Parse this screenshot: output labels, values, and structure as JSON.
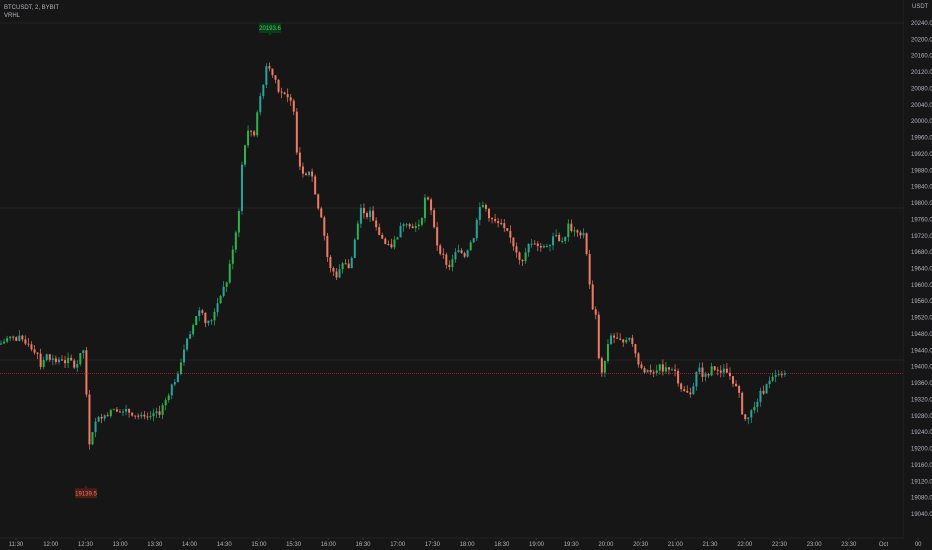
{
  "legend": {
    "symbol": "BTCUSDT, 2, BYBIT",
    "indicator": "VRHL"
  },
  "colors": {
    "bull": "#26a69a",
    "bullBright": "#2ab34e",
    "bear": "#ef7b63",
    "grid": "#222222",
    "axisText": "#b2b5be",
    "priceTag": "#f23645"
  },
  "chart_data": {
    "type": "candlestick",
    "unit": "USDT",
    "ylim": [
      19040,
      20240
    ],
    "y_ticks": [
      "20240.0",
      "20200.0",
      "20160.0",
      "20120.0",
      "20080.0",
      "20040.0",
      "20000.0",
      "19960.0",
      "19920.0",
      "19880.0",
      "19840.0",
      "19800.0",
      "19760.0",
      "19720.0",
      "19680.0",
      "19640.0",
      "19600.0",
      "19560.0",
      "19520.0",
      "19480.0",
      "19440.0",
      "19400.0",
      "19360.0",
      "19320.0",
      "19280.0",
      "19240.0",
      "19200.0",
      "19160.0",
      "19120.0",
      "19080.0",
      "19040.0"
    ],
    "x_ticks": [
      "11:30",
      "12:00",
      "12:30",
      "13:00",
      "13:30",
      "14:00",
      "14:30",
      "15:00",
      "15:30",
      "16:00",
      "16:30",
      "17:00",
      "17:30",
      "18:00",
      "18:30",
      "19:00",
      "19:30",
      "20:00",
      "20:30",
      "21:00",
      "21:30",
      "22:00",
      "22:30",
      "23:00",
      "23:30",
      "Oct",
      "00"
    ],
    "path": [
      [
        0,
        19455
      ],
      [
        4,
        19462
      ],
      [
        8,
        19470
      ],
      [
        12,
        19472
      ],
      [
        16,
        19463
      ],
      [
        20,
        19470
      ],
      [
        24,
        19452
      ],
      [
        28,
        19462
      ],
      [
        33,
        19440
      ],
      [
        37,
        19440
      ],
      [
        41,
        19400
      ],
      [
        45,
        19430
      ],
      [
        49,
        19425
      ],
      [
        54,
        19415
      ],
      [
        58,
        19410
      ],
      [
        62,
        19420
      ],
      [
        66,
        19410
      ],
      [
        70,
        19418
      ],
      [
        74,
        19400
      ],
      [
        78,
        19410
      ],
      [
        83,
        19445
      ],
      [
        86,
        19410
      ],
      [
        87,
        19200
      ],
      [
        90,
        19220
      ],
      [
        94,
        19258
      ],
      [
        98,
        19270
      ],
      [
        102,
        19282
      ],
      [
        106,
        19273
      ],
      [
        110,
        19295
      ],
      [
        114,
        19302
      ],
      [
        118,
        19295
      ],
      [
        122,
        19285
      ],
      [
        126,
        19290
      ],
      [
        130,
        19290
      ],
      [
        134,
        19285
      ],
      [
        138,
        19280
      ],
      [
        142,
        19275
      ],
      [
        146,
        19270
      ],
      [
        150,
        19270
      ],
      [
        154,
        19285
      ],
      [
        158,
        19282
      ],
      [
        162,
        19300
      ],
      [
        166,
        19320
      ],
      [
        170,
        19345
      ],
      [
        174,
        19365
      ],
      [
        178,
        19375
      ],
      [
        182,
        19430
      ],
      [
        186,
        19460
      ],
      [
        190,
        19472
      ],
      [
        194,
        19510
      ],
      [
        198,
        19540
      ],
      [
        202,
        19535
      ],
      [
        206,
        19510
      ],
      [
        210,
        19505
      ],
      [
        214,
        19535
      ],
      [
        218,
        19560
      ],
      [
        222,
        19590
      ],
      [
        226,
        19600
      ],
      [
        230,
        19650
      ],
      [
        234,
        19710
      ],
      [
        238,
        19755
      ],
      [
        242,
        19895
      ],
      [
        246,
        19965
      ],
      [
        250,
        19980
      ],
      [
        254,
        19965
      ],
      [
        258,
        20045
      ],
      [
        262,
        20065
      ],
      [
        266,
        20140
      ],
      [
        270,
        20125
      ],
      [
        274,
        20115
      ],
      [
        278,
        20080
      ],
      [
        282,
        20070
      ],
      [
        286,
        20055
      ],
      [
        290,
        20050
      ],
      [
        294,
        20030
      ],
      [
        297,
        19925
      ],
      [
        301,
        19880
      ],
      [
        305,
        19875
      ],
      [
        309,
        19880
      ],
      [
        313,
        19860
      ],
      [
        317,
        19800
      ],
      [
        321,
        19775
      ],
      [
        325,
        19710
      ],
      [
        329,
        19640
      ],
      [
        333,
        19635
      ],
      [
        337,
        19620
      ],
      [
        341,
        19650
      ],
      [
        345,
        19660
      ],
      [
        349,
        19640
      ],
      [
        353,
        19680
      ],
      [
        357,
        19740
      ],
      [
        361,
        19790
      ],
      [
        365,
        19760
      ],
      [
        369,
        19780
      ],
      [
        373,
        19760
      ],
      [
        377,
        19730
      ],
      [
        381,
        19720
      ],
      [
        385,
        19700
      ],
      [
        389,
        19690
      ],
      [
        393,
        19700
      ],
      [
        397,
        19720
      ],
      [
        401,
        19740
      ],
      [
        405,
        19760
      ],
      [
        409,
        19750
      ],
      [
        413,
        19745
      ],
      [
        417,
        19742
      ],
      [
        421,
        19760
      ],
      [
        425,
        19810
      ],
      [
        429,
        19800
      ],
      [
        433,
        19760
      ],
      [
        437,
        19700
      ],
      [
        441,
        19680
      ],
      [
        445,
        19660
      ],
      [
        449,
        19640
      ],
      [
        453,
        19670
      ],
      [
        457,
        19680
      ],
      [
        461,
        19680
      ],
      [
        465,
        19670
      ],
      [
        469,
        19700
      ],
      [
        473,
        19710
      ],
      [
        477,
        19760
      ],
      [
        481,
        19800
      ],
      [
        485,
        19790
      ],
      [
        489,
        19770
      ],
      [
        493,
        19755
      ],
      [
        497,
        19750
      ],
      [
        501,
        19745
      ],
      [
        505,
        19730
      ],
      [
        509,
        19720
      ],
      [
        513,
        19700
      ],
      [
        517,
        19680
      ],
      [
        521,
        19660
      ],
      [
        525,
        19670
      ],
      [
        529,
        19700
      ],
      [
        533,
        19710
      ],
      [
        537,
        19700
      ],
      [
        541,
        19690
      ],
      [
        545,
        19700
      ],
      [
        549,
        19700
      ],
      [
        553,
        19720
      ],
      [
        557,
        19730
      ],
      [
        561,
        19700
      ],
      [
        565,
        19720
      ],
      [
        569,
        19750
      ],
      [
        573,
        19730
      ],
      [
        577,
        19720
      ],
      [
        581,
        19730
      ],
      [
        585,
        19728
      ],
      [
        588,
        19640
      ],
      [
        592,
        19540
      ],
      [
        596,
        19520
      ],
      [
        600,
        19380
      ],
      [
        603,
        19380
      ],
      [
        607,
        19450
      ],
      [
        611,
        19480
      ],
      [
        615,
        19470
      ],
      [
        619,
        19460
      ],
      [
        623,
        19465
      ],
      [
        627,
        19475
      ],
      [
        631,
        19460
      ],
      [
        635,
        19440
      ],
      [
        639,
        19400
      ],
      [
        643,
        19390
      ],
      [
        647,
        19390
      ],
      [
        651,
        19390
      ],
      [
        655,
        19390
      ],
      [
        659,
        19400
      ],
      [
        663,
        19395
      ],
      [
        667,
        19395
      ],
      [
        671,
        19400
      ],
      [
        675,
        19390
      ],
      [
        679,
        19360
      ],
      [
        683,
        19340
      ],
      [
        687,
        19335
      ],
      [
        691,
        19330
      ],
      [
        695,
        19380
      ],
      [
        699,
        19392
      ],
      [
        703,
        19380
      ],
      [
        707,
        19375
      ],
      [
        711,
        19395
      ],
      [
        715,
        19395
      ],
      [
        719,
        19380
      ],
      [
        723,
        19390
      ],
      [
        727,
        19385
      ],
      [
        731,
        19375
      ],
      [
        735,
        19355
      ],
      [
        739,
        19330
      ],
      [
        743,
        19280
      ],
      [
        747,
        19265
      ],
      [
        751,
        19290
      ],
      [
        755,
        19300
      ],
      [
        759,
        19330
      ],
      [
        763,
        19340
      ],
      [
        767,
        19355
      ],
      [
        771,
        19365
      ],
      [
        775,
        19375
      ],
      [
        779,
        19378
      ],
      [
        783,
        19380
      ],
      [
        787,
        19376
      ]
    ],
    "high_marker": "20193.6",
    "low_marker": "19139.5",
    "last_price": "19383.6",
    "last_countdown": "00:37"
  }
}
